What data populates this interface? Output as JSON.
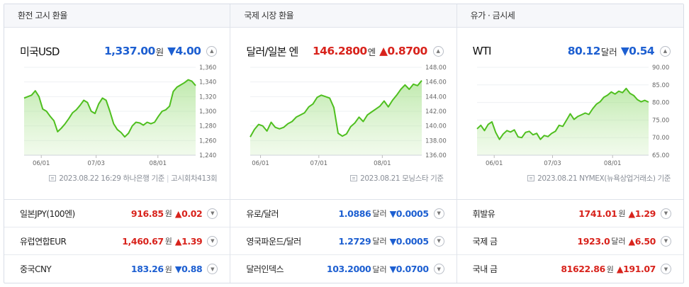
{
  "panels": [
    {
      "title": "환전 고시 환율",
      "headline": {
        "name": "미국USD",
        "value": "1,337.00",
        "unit": "원",
        "change": "▼4.00",
        "direction": "down"
      },
      "source": {
        "date": "2023.08.22 16:29",
        "provider": "하나은행 기준",
        "extra": "고시회차413회"
      },
      "chart_data": {
        "type": "area",
        "x_ticks": [
          "06/01",
          "07/03",
          "08/01"
        ],
        "y_ticks": [
          "1,360",
          "1,340",
          "1,320",
          "1,300",
          "1,280",
          "1,260",
          "1,240"
        ],
        "ylim": [
          1240,
          1360
        ],
        "color": "#4fbf1f",
        "values": [
          1318,
          1320,
          1322,
          1328,
          1320,
          1303,
          1300,
          1293,
          1287,
          1272,
          1277,
          1283,
          1290,
          1298,
          1302,
          1308,
          1315,
          1312,
          1300,
          1297,
          1310,
          1318,
          1315,
          1300,
          1283,
          1275,
          1271,
          1265,
          1270,
          1280,
          1285,
          1284,
          1281,
          1285,
          1283,
          1285,
          1293,
          1300,
          1302,
          1307,
          1327,
          1333,
          1336,
          1339,
          1343,
          1341,
          1335
        ]
      },
      "rows": [
        {
          "name": "일본JPY(100엔)",
          "value": "916.85",
          "unit": "원",
          "change": "▲0.02",
          "direction": "up"
        },
        {
          "name": "유럽연합EUR",
          "value": "1,460.67",
          "unit": "원",
          "change": "▲1.39",
          "direction": "up"
        },
        {
          "name": "중국CNY",
          "value": "183.26",
          "unit": "원",
          "change": "▼0.88",
          "direction": "down"
        }
      ]
    },
    {
      "title": "국제 시장 환율",
      "headline": {
        "name": "달러/일본 엔",
        "value": "146.2800",
        "unit": "엔",
        "change": "▲0.8700",
        "direction": "up"
      },
      "source": {
        "date": "2023.08.21",
        "provider": "모닝스타 기준",
        "extra": ""
      },
      "chart_data": {
        "type": "area",
        "x_ticks": [
          "06/01",
          "07/01",
          "08/01"
        ],
        "y_ticks": [
          "148.00",
          "146.00",
          "144.00",
          "142.00",
          "140.00",
          "138.00",
          "136.00"
        ],
        "ylim": [
          136,
          148
        ],
        "color": "#4fbf1f",
        "values": [
          138.5,
          139.5,
          140.2,
          140.0,
          139.3,
          140.5,
          139.8,
          139.6,
          139.8,
          140.3,
          140.6,
          141.2,
          141.5,
          141.8,
          142.6,
          143.0,
          143.9,
          144.2,
          144.0,
          143.8,
          142.5,
          139.0,
          138.6,
          138.9,
          139.9,
          140.4,
          141.2,
          140.6,
          141.5,
          141.9,
          142.3,
          142.7,
          143.4,
          142.6,
          143.5,
          144.2,
          145.0,
          145.6,
          145.0,
          145.7,
          145.5,
          146.2
        ]
      },
      "rows": [
        {
          "name": "유로/달러",
          "value": "1.0886",
          "unit": "달러",
          "change": "▼0.0005",
          "direction": "down"
        },
        {
          "name": "영국파운드/달러",
          "value": "1.2729",
          "unit": "달러",
          "change": "▼0.0005",
          "direction": "down"
        },
        {
          "name": "달러인덱스",
          "value": "103.2000",
          "unit": "달러",
          "change": "▼0.0700",
          "direction": "down"
        }
      ]
    },
    {
      "title": "유가 · 금시세",
      "headline": {
        "name": "WTI",
        "value": "80.12",
        "unit": "달러",
        "change": "▼0.54",
        "direction": "down"
      },
      "source": {
        "date": "2023.08.21",
        "provider": "NYMEX(뉴욕상업거래소) 기준",
        "extra": ""
      },
      "chart_data": {
        "type": "area",
        "x_ticks": [
          "06/01",
          "07/03",
          "08/01"
        ],
        "y_ticks": [
          "90.00",
          "85.00",
          "80.00",
          "75.00",
          "70.00",
          "65.00"
        ],
        "ylim": [
          65,
          90
        ],
        "color": "#4fbf1f",
        "values": [
          72.5,
          73.5,
          72.0,
          73.8,
          74.5,
          71.5,
          69.5,
          71.0,
          72.0,
          71.6,
          72.2,
          70.2,
          70.0,
          71.5,
          71.8,
          70.8,
          71.2,
          69.5,
          70.6,
          70.3,
          71.2,
          71.8,
          73.5,
          73.2,
          75.0,
          76.8,
          75.2,
          76.0,
          76.5,
          77.0,
          76.6,
          78.2,
          79.5,
          80.2,
          81.5,
          82.1,
          83.0,
          82.4,
          83.2,
          82.8,
          84.0,
          82.6,
          82.0,
          80.8,
          80.2,
          80.6,
          80.1
        ]
      },
      "rows": [
        {
          "name": "휘발유",
          "value": "1741.01",
          "unit": "원",
          "change": "▲1.29",
          "direction": "up"
        },
        {
          "name": "국제 금",
          "value": "1923.0",
          "unit": "달러",
          "change": "▲6.50",
          "direction": "up"
        },
        {
          "name": "국내 금",
          "value": "81622.86",
          "unit": "원",
          "change": "▲191.07",
          "direction": "up"
        }
      ]
    }
  ]
}
